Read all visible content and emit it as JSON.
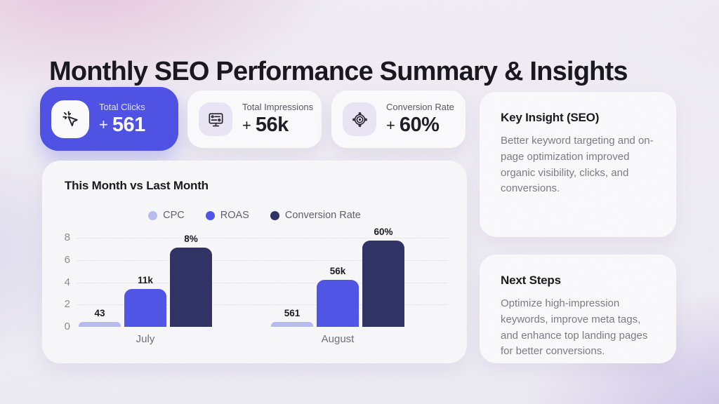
{
  "page": {
    "title": "Monthly SEO Performance Summary & Insights"
  },
  "stats": [
    {
      "label": "Total Clicks",
      "prefix": "+",
      "value": "561",
      "icon": "cursor-click-icon",
      "variant": "primary"
    },
    {
      "label": "Total Impressions",
      "prefix": "+",
      "value": "56k",
      "icon": "impressions-monitor-icon",
      "variant": "light"
    },
    {
      "label": "Conversion Rate",
      "prefix": "+",
      "value": "60%",
      "icon": "target-icon",
      "variant": "light"
    }
  ],
  "chart_data": {
    "type": "bar",
    "title": "This Month vs Last Month",
    "categories": [
      "July",
      "August"
    ],
    "series": [
      {
        "name": "CPC",
        "color": "#B9BDF3",
        "data_labels": [
          "43",
          "561"
        ],
        "bar_heights_axis_units": [
          0.45,
          0.45
        ]
      },
      {
        "name": "ROAS",
        "color": "#4E53E8",
        "data_labels": [
          "11k",
          "56k"
        ],
        "bar_heights_axis_units": [
          3.4,
          4.2
        ]
      },
      {
        "name": "Conversion Rate",
        "color": "#2C3062",
        "data_labels": [
          "8%",
          "60%"
        ],
        "bar_heights_axis_units": [
          7.15,
          7.75
        ]
      }
    ],
    "y_ticks": [
      0,
      2,
      4,
      6,
      8
    ],
    "ylim": [
      0,
      8
    ],
    "grid": true,
    "legend_position": "top-center",
    "xlabel": "",
    "ylabel": ""
  },
  "insight_card": {
    "title": "Key Insight (SEO)",
    "body": "Better keyword targeting and on-page optimization improved organic visibility, clicks, and conversions."
  },
  "next_steps_card": {
    "title": "Next Steps",
    "body": "Optimize high-impression keywords, improve meta tags, and enhance top landing pages for better conversions."
  },
  "colors": {
    "accent_primary": "#4C50E6",
    "bar_cpc": "#B9BDF3",
    "bar_roas": "#4E53E8",
    "bar_conversion": "#2C3062",
    "text_dark": "#17171C",
    "text_muted": "#7B7B84",
    "card_bg": "#FDFDFE"
  }
}
